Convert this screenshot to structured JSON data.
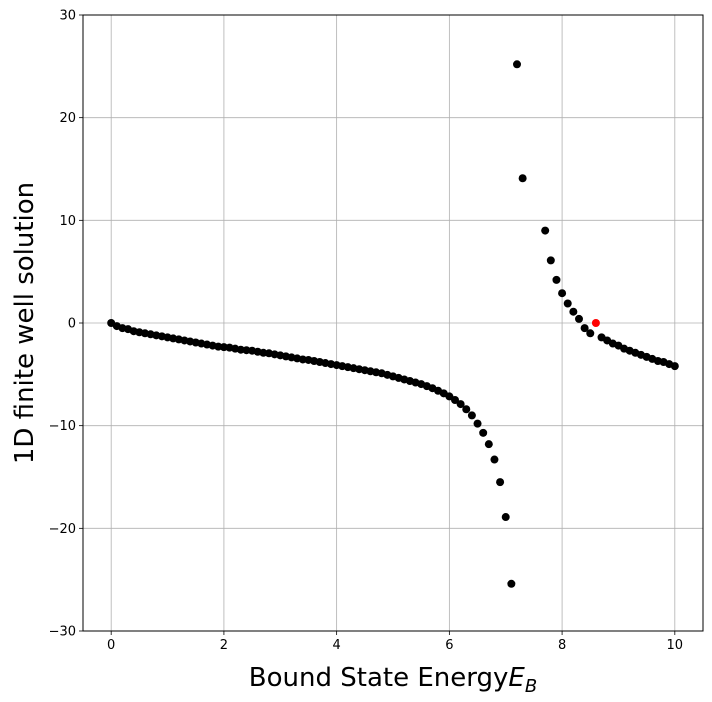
{
  "chart_data": {
    "type": "scatter",
    "xlabel": "Bound State Energy",
    "xlabel_math_symbol": "E",
    "xlabel_math_subscript": "B",
    "ylabel": "1D finite well solution",
    "xlim": [
      -0.5,
      10.5
    ],
    "ylim": [
      -30,
      30
    ],
    "x_ticks": [
      0,
      2,
      4,
      6,
      8,
      10
    ],
    "y_ticks": [
      -30,
      -20,
      -10,
      0,
      10,
      20,
      30
    ],
    "x_tick_labels": [
      "0",
      "2",
      "4",
      "6",
      "8",
      "10"
    ],
    "y_tick_labels": [
      "−30",
      "−20",
      "−10",
      "0",
      "10",
      "20",
      "30"
    ],
    "grid": true,
    "marker_color": "#000000",
    "highlight_color": "#ff0000",
    "series": [
      {
        "x": [
          0.0,
          0.1,
          0.2,
          0.3,
          0.4,
          0.5,
          0.6,
          0.7,
          0.8,
          0.9,
          1.0,
          1.1,
          1.2,
          1.3,
          1.4,
          1.5,
          1.6,
          1.7,
          1.8,
          1.9,
          2.0,
          2.1,
          2.2,
          2.3,
          2.4,
          2.5,
          2.6,
          2.7,
          2.8,
          2.9,
          3.0,
          3.1,
          3.2,
          3.3,
          3.4,
          3.5,
          3.6,
          3.7,
          3.8,
          3.9,
          4.0,
          4.1,
          4.2,
          4.3,
          4.4,
          4.5,
          4.6,
          4.7,
          4.8,
          4.9,
          5.0,
          5.1,
          5.2,
          5.3,
          5.4,
          5.5,
          5.6,
          5.7,
          5.8,
          5.9,
          6.0,
          6.1,
          6.2,
          6.3,
          6.4,
          6.5,
          6.6,
          6.7,
          6.8,
          6.9,
          7.0,
          7.1,
          7.2,
          7.3,
          7.7,
          7.8,
          7.9,
          8.0,
          8.1,
          8.2,
          8.3,
          8.4,
          8.5,
          8.7,
          8.8,
          8.9,
          9.0,
          9.1,
          9.2,
          9.3,
          9.4,
          9.5,
          9.6,
          9.7,
          9.8,
          9.9,
          10.0
        ],
        "y": [
          0.0,
          -0.3,
          -0.5,
          -0.6,
          -0.8,
          -0.9,
          -1.0,
          -1.1,
          -1.2,
          -1.3,
          -1.4,
          -1.5,
          -1.6,
          -1.7,
          -1.8,
          -1.9,
          -2.0,
          -2.1,
          -2.2,
          -2.3,
          -2.35,
          -2.4,
          -2.5,
          -2.6,
          -2.65,
          -2.7,
          -2.8,
          -2.9,
          -2.95,
          -3.05,
          -3.15,
          -3.25,
          -3.35,
          -3.45,
          -3.55,
          -3.6,
          -3.7,
          -3.8,
          -3.9,
          -4.0,
          -4.1,
          -4.2,
          -4.3,
          -4.4,
          -4.5,
          -4.6,
          -4.7,
          -4.8,
          -4.9,
          -5.05,
          -5.2,
          -5.35,
          -5.5,
          -5.65,
          -5.8,
          -5.95,
          -6.15,
          -6.35,
          -6.6,
          -6.85,
          -7.15,
          -7.5,
          -7.9,
          -8.4,
          -9.0,
          -9.8,
          -10.7,
          -11.8,
          -13.3,
          -15.5,
          -18.9,
          -25.4,
          25.2,
          14.1,
          9.0,
          6.1,
          4.2,
          2.9,
          1.9,
          1.1,
          0.4,
          -0.5,
          -1.0,
          -1.4,
          -1.7,
          -2.0,
          -2.2,
          -2.5,
          -2.7,
          -2.9,
          -3.1,
          -3.3,
          -3.5,
          -3.7,
          -3.8,
          -4.0,
          -4.2
        ]
      },
      {
        "x": [
          8.6
        ],
        "y": [
          0.0
        ]
      }
    ]
  }
}
